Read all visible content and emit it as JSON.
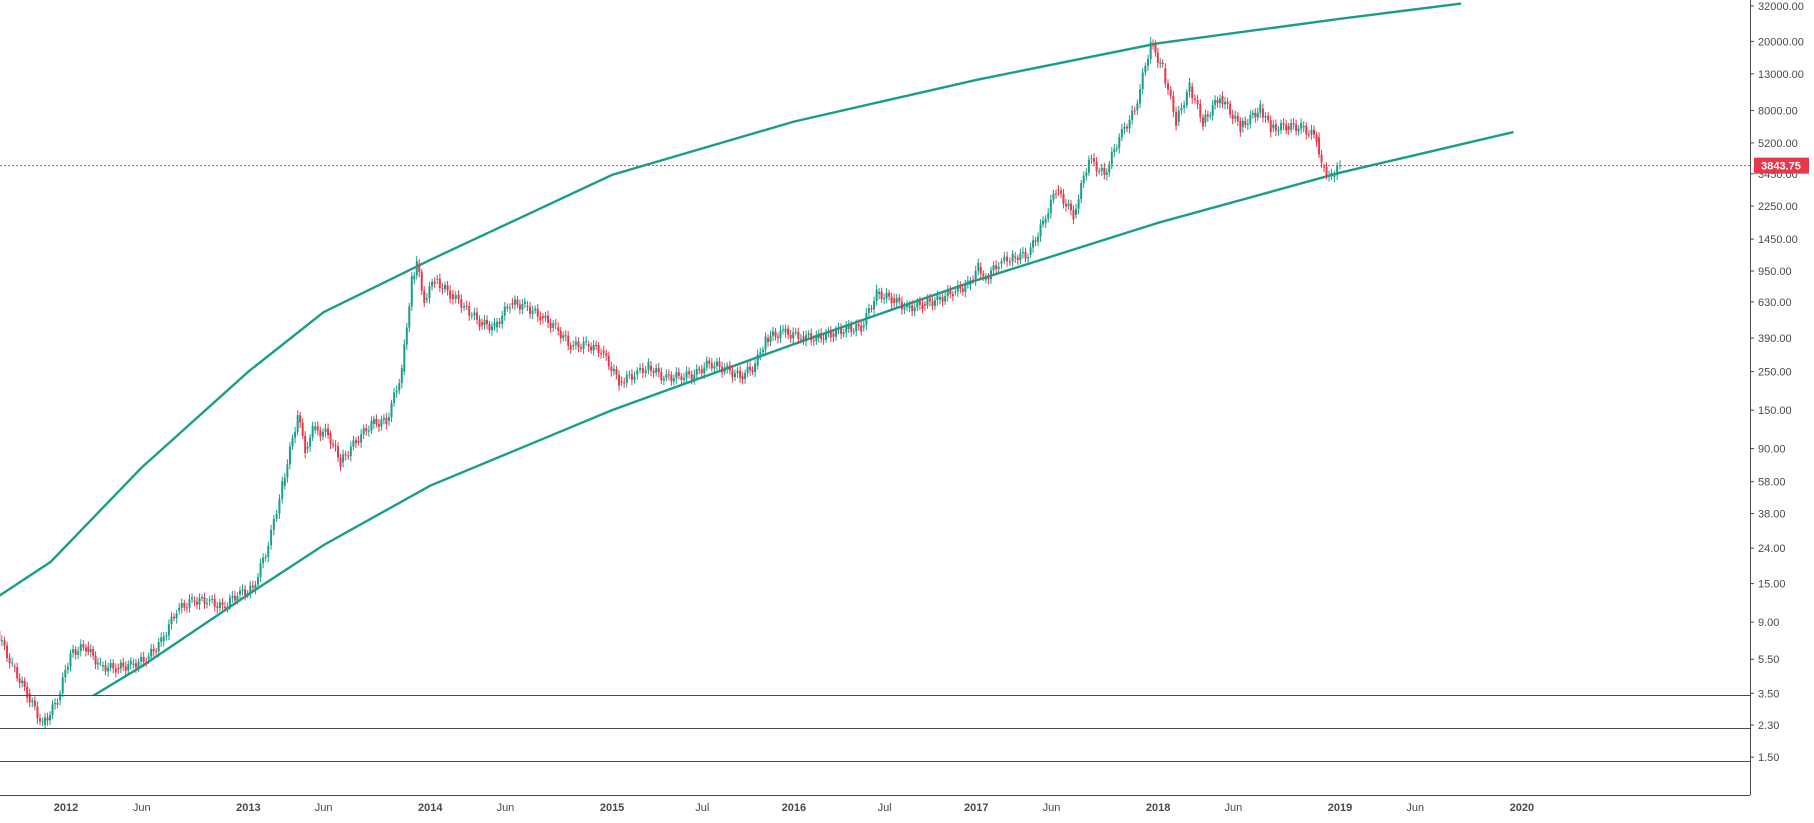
{
  "chart_data": {
    "type": "candlestick",
    "scale": "log",
    "grid": false,
    "ylim": [
      1.5,
      32000
    ],
    "y_ticks": [
      32000,
      20000,
      13000,
      8000,
      5200,
      3450,
      2250,
      1450,
      950,
      630,
      390,
      250,
      150,
      90,
      58,
      38,
      24,
      15,
      9,
      5.5,
      3.5,
      2.3,
      1.5
    ],
    "y_tick_labels": [
      "32000.00",
      "20000.00",
      "13000.00",
      "8000.00",
      "5200.00",
      "3450.00",
      "2250.00",
      "1450.00",
      "950.00",
      "630.00",
      "390.00",
      "250.00",
      "150.00",
      "90.00",
      "58.00",
      "38.00",
      "24.00",
      "15.00",
      "9.00",
      "5.50",
      "3.50",
      "2.30",
      "1.50"
    ],
    "x_ticks": [
      {
        "label": "2012",
        "date": "2012-01-01",
        "major": true
      },
      {
        "label": "Jun",
        "date": "2012-06-01",
        "major": false
      },
      {
        "label": "2013",
        "date": "2013-01-01",
        "major": true
      },
      {
        "label": "Jun",
        "date": "2013-06-01",
        "major": false
      },
      {
        "label": "2014",
        "date": "2014-01-01",
        "major": true
      },
      {
        "label": "Jun",
        "date": "2014-06-01",
        "major": false
      },
      {
        "label": "2015",
        "date": "2015-01-01",
        "major": true
      },
      {
        "label": "Jul",
        "date": "2015-07-01",
        "major": false
      },
      {
        "label": "2016",
        "date": "2016-01-01",
        "major": true
      },
      {
        "label": "Jul",
        "date": "2016-07-01",
        "major": false
      },
      {
        "label": "2017",
        "date": "2017-01-01",
        "major": true
      },
      {
        "label": "Jun",
        "date": "2017-06-01",
        "major": false
      },
      {
        "label": "2018",
        "date": "2018-01-01",
        "major": true
      },
      {
        "label": "Jun",
        "date": "2018-06-01",
        "major": false
      },
      {
        "label": "2019",
        "date": "2019-01-01",
        "major": true
      },
      {
        "label": "Jun",
        "date": "2019-06-01",
        "major": false
      },
      {
        "label": "2020",
        "date": "2020-01-01",
        "major": true
      }
    ],
    "last_price": {
      "value": 3843.75,
      "label": "3843.75",
      "color": "#e5394b"
    },
    "price_series": [
      [
        "2011-06-15",
        11
      ],
      [
        "2011-07-15",
        13
      ],
      [
        "2011-08-15",
        8
      ],
      [
        "2011-09-15",
        5
      ],
      [
        "2011-10-15",
        3.5
      ],
      [
        "2011-11-15",
        2.3
      ],
      [
        "2011-12-15",
        3.2
      ],
      [
        "2012-01-10",
        6
      ],
      [
        "2012-02-10",
        6.5
      ],
      [
        "2012-03-10",
        5
      ],
      [
        "2012-04-10",
        4.9
      ],
      [
        "2012-05-10",
        5.1
      ],
      [
        "2012-06-10",
        5.5
      ],
      [
        "2012-07-10",
        7
      ],
      [
        "2012-08-10",
        10.5
      ],
      [
        "2012-09-10",
        12
      ],
      [
        "2012-10-10",
        12
      ],
      [
        "2012-11-10",
        11
      ],
      [
        "2012-12-10",
        13
      ],
      [
        "2013-01-10",
        14
      ],
      [
        "2013-02-10",
        25
      ],
      [
        "2013-03-10",
        55
      ],
      [
        "2013-04-10",
        140
      ],
      [
        "2013-04-25",
        90
      ],
      [
        "2013-05-10",
        115
      ],
      [
        "2013-06-10",
        110
      ],
      [
        "2013-07-05",
        75
      ],
      [
        "2013-08-05",
        100
      ],
      [
        "2013-09-05",
        125
      ],
      [
        "2013-10-05",
        130
      ],
      [
        "2013-11-05",
        250
      ],
      [
        "2013-11-25",
        850
      ],
      [
        "2013-12-05",
        1050
      ],
      [
        "2013-12-20",
        650
      ],
      [
        "2014-01-10",
        850
      ],
      [
        "2014-02-10",
        700
      ],
      [
        "2014-03-10",
        600
      ],
      [
        "2014-04-10",
        480
      ],
      [
        "2014-05-10",
        450
      ],
      [
        "2014-06-10",
        620
      ],
      [
        "2014-07-10",
        600
      ],
      [
        "2014-08-10",
        520
      ],
      [
        "2014-09-10",
        450
      ],
      [
        "2014-10-10",
        350
      ],
      [
        "2014-11-10",
        360
      ],
      [
        "2014-12-10",
        330
      ],
      [
        "2015-01-15",
        220
      ],
      [
        "2015-02-15",
        240
      ],
      [
        "2015-03-15",
        270
      ],
      [
        "2015-04-15",
        230
      ],
      [
        "2015-05-15",
        235
      ],
      [
        "2015-06-15",
        240
      ],
      [
        "2015-07-15",
        280
      ],
      [
        "2015-08-15",
        260
      ],
      [
        "2015-09-15",
        235
      ],
      [
        "2015-10-15",
        270
      ],
      [
        "2015-11-05",
        390
      ],
      [
        "2015-12-10",
        420
      ],
      [
        "2016-01-15",
        400
      ],
      [
        "2016-02-15",
        390
      ],
      [
        "2016-03-15",
        415
      ],
      [
        "2016-04-15",
        440
      ],
      [
        "2016-05-15",
        450
      ],
      [
        "2016-06-15",
        700
      ],
      [
        "2016-07-15",
        660
      ],
      [
        "2016-08-15",
        580
      ],
      [
        "2016-09-15",
        610
      ],
      [
        "2016-10-15",
        650
      ],
      [
        "2016-11-15",
        720
      ],
      [
        "2016-12-15",
        790
      ],
      [
        "2017-01-05",
        1000
      ],
      [
        "2017-01-15",
        840
      ],
      [
        "2017-02-15",
        1050
      ],
      [
        "2017-03-15",
        1150
      ],
      [
        "2017-04-15",
        1180
      ],
      [
        "2017-05-15",
        1800
      ],
      [
        "2017-06-10",
        2800
      ],
      [
        "2017-07-15",
        2000
      ],
      [
        "2017-08-15",
        4200
      ],
      [
        "2017-09-15",
        3400
      ],
      [
        "2017-10-15",
        5600
      ],
      [
        "2017-11-15",
        8000
      ],
      [
        "2017-12-17",
        19500
      ],
      [
        "2018-01-10",
        14000
      ],
      [
        "2018-02-06",
        6900
      ],
      [
        "2018-03-05",
        11000
      ],
      [
        "2018-04-01",
        6800
      ],
      [
        "2018-05-05",
        9700
      ],
      [
        "2018-06-15",
        6400
      ],
      [
        "2018-07-25",
        8200
      ],
      [
        "2018-08-15",
        6300
      ],
      [
        "2018-09-15",
        6500
      ],
      [
        "2018-10-15",
        6400
      ],
      [
        "2018-11-15",
        5600
      ],
      [
        "2018-11-25",
        3800
      ],
      [
        "2018-12-15",
        3300
      ],
      [
        "2019-01-01",
        3843.75
      ]
    ],
    "trendlines": [
      {
        "role": "upper-curve",
        "color": "#1a9e8a",
        "points": [
          [
            "2011-06-01",
            9
          ],
          [
            "2011-12-01",
            20
          ],
          [
            "2012-06-01",
            70
          ],
          [
            "2013-01-01",
            250
          ],
          [
            "2013-06-01",
            550
          ],
          [
            "2014-01-01",
            1100
          ],
          [
            "2015-01-01",
            3400
          ],
          [
            "2016-01-01",
            6900
          ],
          [
            "2017-01-01",
            12000
          ],
          [
            "2018-01-01",
            19500
          ],
          [
            "2019-01-01",
            27000
          ],
          [
            "2019-09-01",
            33000
          ]
        ]
      },
      {
        "role": "lower-curve",
        "color": "#1a9e8a",
        "points": [
          [
            "2011-11-20",
            2.3
          ],
          [
            "2012-06-01",
            5
          ],
          [
            "2013-01-01",
            13
          ],
          [
            "2013-06-01",
            25
          ],
          [
            "2014-01-01",
            55
          ],
          [
            "2015-01-01",
            150
          ],
          [
            "2016-01-01",
            360
          ],
          [
            "2016-07-01",
            550
          ],
          [
            "2017-01-01",
            840
          ],
          [
            "2018-01-01",
            1800
          ],
          [
            "2019-01-01",
            3500
          ],
          [
            "2019-12-15",
            6000
          ]
        ]
      }
    ]
  }
}
